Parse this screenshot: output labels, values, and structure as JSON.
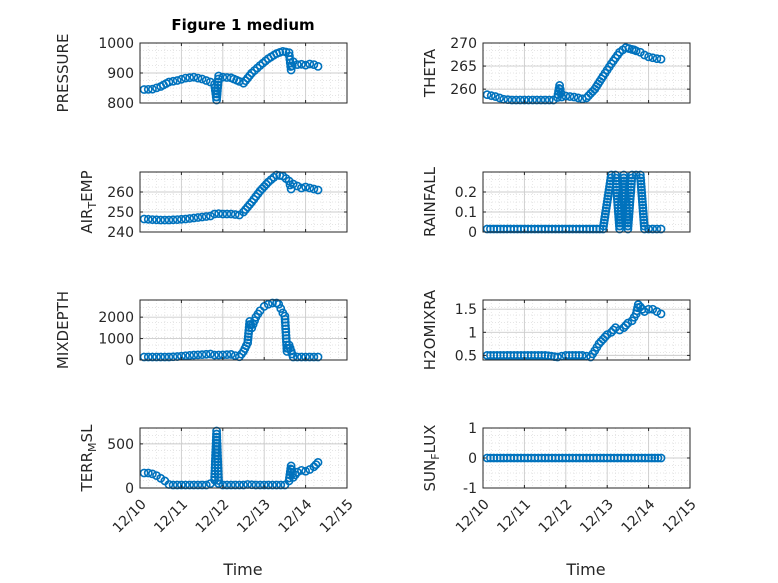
{
  "figure": {
    "title": "Figure 1 medium",
    "xlabel": "Time",
    "marker_color": "#0072BD"
  },
  "chart_data": [
    {
      "type": "scatter",
      "ylabel": "PRESSURE",
      "ylim": [
        800,
        1000
      ],
      "yticks": [
        800,
        900,
        1000
      ],
      "xlim": [
        0,
        5
      ],
      "xtick_labels": [],
      "grid": true,
      "series": [
        {
          "x": [
            0.1,
            0.3,
            0.5,
            0.7,
            0.9,
            1.1,
            1.3,
            1.5,
            1.7,
            1.8,
            1.85,
            1.9,
            2.0,
            2.2,
            2.4,
            2.5,
            2.7,
            2.9,
            3.1,
            3.3,
            3.45,
            3.6,
            3.65,
            3.7,
            3.8,
            3.9,
            4.0,
            4.1,
            4.2,
            4.3
          ],
          "y": [
            845,
            846,
            855,
            870,
            875,
            883,
            886,
            880,
            870,
            862,
            810,
            890,
            886,
            884,
            872,
            866,
            900,
            925,
            948,
            965,
            972,
            968,
            910,
            938,
            928,
            929,
            926,
            930,
            928,
            922
          ]
        }
      ]
    },
    {
      "type": "scatter",
      "ylabel": "THETA",
      "ylim": [
        257,
        270
      ],
      "yticks": [
        260,
        265,
        270
      ],
      "xlim": [
        0,
        5
      ],
      "xtick_labels": [],
      "grid": true,
      "series": [
        {
          "x": [
            0.1,
            0.3,
            0.5,
            0.7,
            0.9,
            1.1,
            1.3,
            1.5,
            1.7,
            1.8,
            1.85,
            1.9,
            2.0,
            2.2,
            2.4,
            2.5,
            2.7,
            2.9,
            3.1,
            3.3,
            3.45,
            3.6,
            3.65,
            3.7,
            3.8,
            3.9,
            4.0,
            4.1,
            4.2,
            4.3
          ],
          "y": [
            258.8,
            258.4,
            257.8,
            257.3,
            256.9,
            256.8,
            257.0,
            257.3,
            257.6,
            258.2,
            260.8,
            258.3,
            258.5,
            258.3,
            257.9,
            258.1,
            260.0,
            262.8,
            265.5,
            268.0,
            269.0,
            268.6,
            268.5,
            268.3,
            268.0,
            267.4,
            267.0,
            266.8,
            266.6,
            266.5
          ]
        }
      ]
    },
    {
      "type": "scatter",
      "ylabel": "AIR_TEMP",
      "ylabel_main": "AIR",
      "ylabel_sub": "T",
      "ylabel_rest": "EMP",
      "ylim": [
        240,
        270
      ],
      "yticks": [
        240,
        250,
        260
      ],
      "xlim": [
        0,
        5
      ],
      "xtick_labels": [],
      "grid": true,
      "series": [
        {
          "x": [
            0.1,
            0.3,
            0.5,
            0.7,
            0.9,
            1.1,
            1.3,
            1.5,
            1.7,
            1.8,
            1.9,
            2.0,
            2.2,
            2.4,
            2.5,
            2.7,
            2.9,
            3.1,
            3.3,
            3.45,
            3.6,
            3.65,
            3.7,
            3.8,
            3.9,
            4.0,
            4.1,
            4.2,
            4.3
          ],
          "y": [
            246.5,
            246.2,
            246.0,
            246.0,
            246.2,
            246.5,
            247.0,
            247.5,
            248.0,
            249.0,
            249.2,
            249.0,
            249.0,
            248.5,
            250.0,
            255.0,
            260.5,
            265.0,
            268.5,
            268.0,
            265.5,
            261.5,
            264.0,
            263.0,
            262.0,
            262.5,
            262.0,
            261.5,
            261.0
          ]
        }
      ]
    },
    {
      "type": "scatter",
      "ylabel": "RAINFALL",
      "ylim": [
        0,
        0.3
      ],
      "yticks": [
        0,
        0.1,
        0.2
      ],
      "xlim": [
        0,
        5
      ],
      "xtick_labels": [],
      "grid": true,
      "series": [
        {
          "x": [
            0.1,
            0.5,
            1.0,
            1.5,
            2.0,
            2.5,
            2.9,
            3.1,
            3.2,
            3.3,
            3.4,
            3.5,
            3.6,
            3.7,
            3.8,
            3.9,
            4.0,
            4.1,
            4.2,
            4.3
          ],
          "y": [
            0,
            0,
            0,
            0,
            0,
            0,
            0,
            0.3,
            0.3,
            0,
            0.3,
            0,
            0.3,
            0.3,
            0.3,
            0,
            0,
            0,
            0,
            0
          ]
        }
      ]
    },
    {
      "type": "scatter",
      "ylabel": "MIXDEPTH",
      "ylim": [
        0,
        2800
      ],
      "yticks": [
        0,
        1000,
        2000
      ],
      "xlim": [
        0,
        5
      ],
      "xtick_labels": [],
      "grid": true,
      "series": [
        {
          "x": [
            0.1,
            0.3,
            0.5,
            0.7,
            0.9,
            1.1,
            1.3,
            1.5,
            1.7,
            1.8,
            2.0,
            2.2,
            2.4,
            2.5,
            2.6,
            2.65,
            2.7,
            2.8,
            2.9,
            3.0,
            3.1,
            3.2,
            3.3,
            3.35,
            3.4,
            3.45,
            3.5,
            3.55,
            3.6,
            3.7,
            3.8,
            3.9,
            4.0,
            4.1,
            4.2,
            4.3
          ],
          "y": [
            20,
            40,
            80,
            120,
            160,
            200,
            230,
            250,
            280,
            230,
            240,
            260,
            150,
            400,
            800,
            1800,
            1500,
            2000,
            2300,
            2500,
            2600,
            2700,
            2750,
            2600,
            2400,
            2200,
            2050,
            400,
            700,
            100,
            80,
            50,
            40,
            30,
            20,
            10
          ]
        }
      ]
    },
    {
      "type": "scatter",
      "ylabel": "H2OMIXRA",
      "ylim": [
        0.4,
        1.7
      ],
      "yticks": [
        0.5,
        1,
        1.5
      ],
      "xlim": [
        0,
        5
      ],
      "xtick_labels": [],
      "grid": true,
      "series": [
        {
          "x": [
            0.1,
            0.5,
            1.0,
            1.5,
            1.8,
            2.0,
            2.4,
            2.6,
            2.7,
            2.8,
            2.9,
            3.0,
            3.1,
            3.2,
            3.3,
            3.4,
            3.5,
            3.6,
            3.7,
            3.75,
            3.8,
            3.9,
            4.0,
            4.1,
            4.2,
            4.3
          ],
          "y": [
            0.5,
            0.5,
            0.5,
            0.5,
            0.45,
            0.5,
            0.5,
            0.45,
            0.6,
            0.75,
            0.85,
            0.95,
            1.0,
            1.1,
            1.05,
            1.1,
            1.2,
            1.25,
            1.4,
            1.6,
            1.55,
            1.45,
            1.5,
            1.5,
            1.45,
            1.4
          ]
        }
      ]
    },
    {
      "type": "scatter",
      "ylabel": "TERR_MSL",
      "ylabel_main": "TERR",
      "ylabel_sub": "M",
      "ylabel_rest": "SL",
      "ylim": [
        0,
        680
      ],
      "yticks": [
        0,
        500
      ],
      "xlim": [
        0,
        5
      ],
      "xtick_labels": [
        "12/10",
        "12/11",
        "12/12",
        "12/13",
        "12/14",
        "12/15"
      ],
      "grid": true,
      "series": [
        {
          "x": [
            0.1,
            0.2,
            0.3,
            0.4,
            0.5,
            0.6,
            0.7,
            0.8,
            0.9,
            1.0,
            1.2,
            1.4,
            1.6,
            1.7,
            1.8,
            1.85,
            1.9,
            2.0,
            2.2,
            2.4,
            2.5,
            2.6,
            2.8,
            3.0,
            3.2,
            3.4,
            3.5,
            3.6,
            3.65,
            3.7,
            3.8,
            3.9,
            4.0,
            4.1,
            4.2,
            4.3
          ],
          "y": [
            170,
            170,
            160,
            140,
            110,
            80,
            40,
            20,
            5,
            0,
            0,
            0,
            10,
            50,
            90,
            660,
            50,
            0,
            0,
            0,
            5,
            40,
            0,
            0,
            0,
            0,
            10,
            80,
            250,
            120,
            180,
            200,
            190,
            210,
            240,
            290
          ]
        }
      ]
    },
    {
      "type": "scatter",
      "ylabel": "SUN_FLUX",
      "ylabel_main": "SUN",
      "ylabel_sub": "F",
      "ylabel_rest": "LUX",
      "ylim": [
        -1,
        1
      ],
      "yticks": [
        -1,
        0,
        1
      ],
      "xlim": [
        0,
        5
      ],
      "xtick_labels": [
        "12/10",
        "12/11",
        "12/12",
        "12/13",
        "12/14",
        "12/15"
      ],
      "grid": true,
      "series": [
        {
          "x": [
            0.1,
            0.5,
            1.0,
            1.5,
            2.0,
            2.5,
            3.0,
            3.5,
            4.0,
            4.3
          ],
          "y": [
            0,
            0,
            0,
            0,
            0,
            0,
            0,
            0,
            0,
            0
          ]
        }
      ]
    }
  ]
}
